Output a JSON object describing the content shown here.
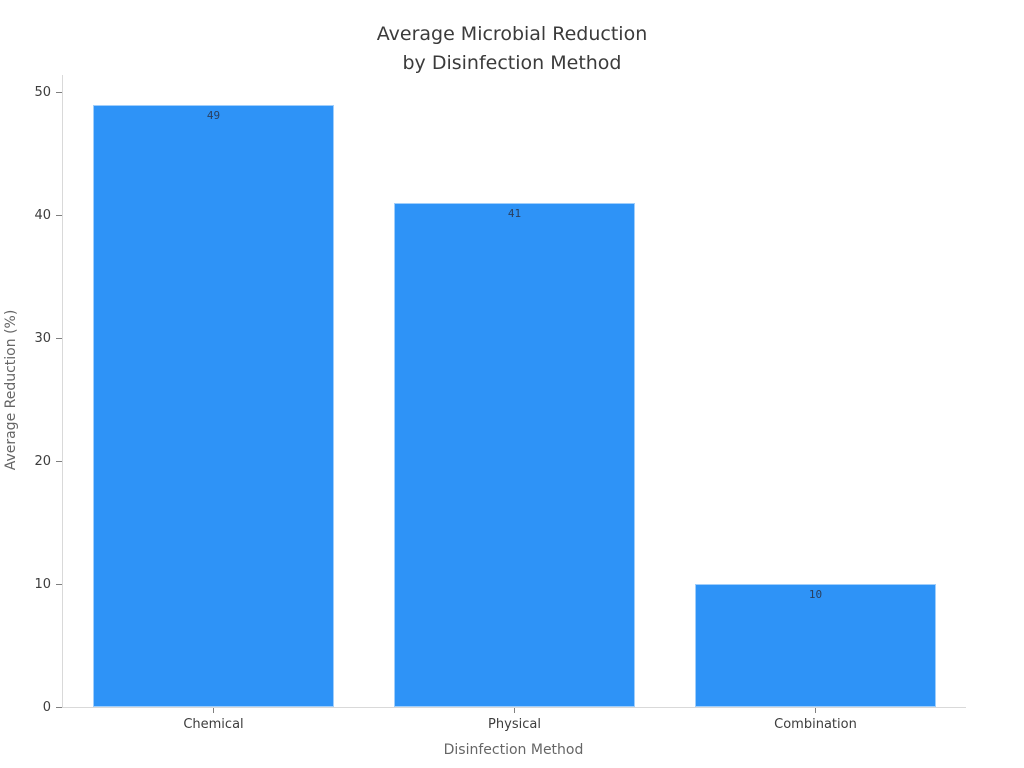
{
  "chart_data": {
    "type": "bar",
    "title": "Average Microbial Reduction\nby Disinfection Method",
    "categories": [
      "Chemical",
      "Physical",
      "Combination"
    ],
    "values": [
      49,
      41,
      10
    ],
    "bar_labels": [
      "49",
      "41",
      "10"
    ],
    "xlabel": "Disinfection Method",
    "ylabel": "Average Reduction (%)",
    "yticks": [
      0,
      10,
      20,
      30,
      40,
      50
    ],
    "ylim": [
      0,
      51.45
    ],
    "grid": false,
    "legend": "none",
    "colors": {
      "bar_fill": "#2E93F7",
      "bar_value_label": "#2A3F5F",
      "axis_line": "#D9D9D9",
      "tick_mark": "#7F7F7F",
      "tick_label": "#3D3D3D",
      "axis_title": "#666666",
      "title": "#3B3B3B",
      "background": "#FFFFFF"
    }
  }
}
